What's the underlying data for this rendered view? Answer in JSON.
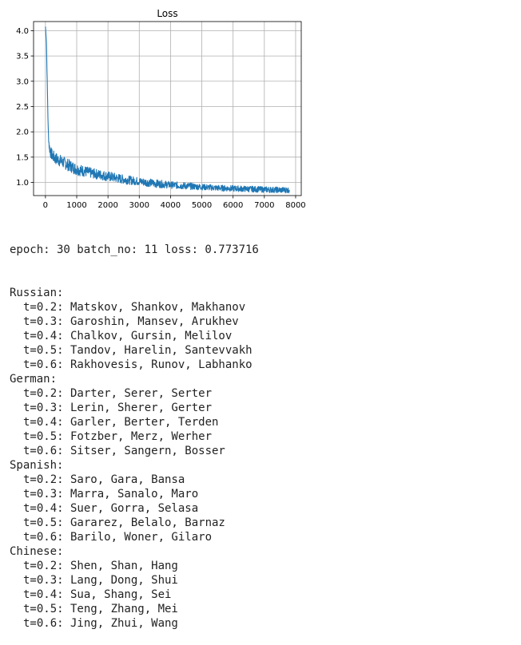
{
  "chart_data": {
    "type": "line",
    "title": "Loss",
    "xlabel": "",
    "ylabel": "",
    "xlim": [
      -380,
      8180
    ],
    "ylim": [
      0.74,
      4.18
    ],
    "xticks": [
      "0",
      "1000",
      "2000",
      "3000",
      "4000",
      "5000",
      "6000",
      "7000",
      "8000"
    ],
    "yticks": [
      "1.0",
      "1.5",
      "2.0",
      "2.5",
      "3.0",
      "3.5",
      "4.0"
    ],
    "grid": true,
    "color": "#1f77b4",
    "series": [
      {
        "x": [
          0,
          30,
          60,
          90,
          120,
          150,
          200,
          300,
          500,
          800,
          1000,
          1500,
          2000,
          2500,
          3000,
          3500,
          4000,
          4500,
          5000,
          5500,
          6000,
          6500,
          7000,
          7500,
          7800
        ],
        "y": [
          4.08,
          3.82,
          2.9,
          2.0,
          1.72,
          1.62,
          1.55,
          1.48,
          1.42,
          1.32,
          1.26,
          1.18,
          1.12,
          1.06,
          1.02,
          0.98,
          0.95,
          0.93,
          0.91,
          0.89,
          0.88,
          0.87,
          0.86,
          0.85,
          0.85
        ],
        "noise": [
          0.02,
          0.04,
          0.06,
          0.08,
          0.1,
          0.11,
          0.12,
          0.12,
          0.12,
          0.12,
          0.12,
          0.1,
          0.1,
          0.09,
          0.08,
          0.08,
          0.07,
          0.07,
          0.06,
          0.06,
          0.06,
          0.06,
          0.06,
          0.06,
          0.06
        ]
      }
    ]
  },
  "console": {
    "status": "epoch: 30 batch_no: 11 loss: 0.773716",
    "groups": [
      {
        "language": "Russian:",
        "lines": [
          "t=0.2: Matskov, Shankov, Makhanov",
          "t=0.3: Garoshin, Mansev, Arukhev",
          "t=0.4: Chalkov, Gursin, Melilov",
          "t=0.5: Tandov, Harelin, Santevvakh",
          "t=0.6: Rakhovesis, Runov, Labhanko"
        ]
      },
      {
        "language": "German:",
        "lines": [
          "t=0.2: Darter, Serer, Serter",
          "t=0.3: Lerin, Sherer, Gerter",
          "t=0.4: Garler, Berter, Terden",
          "t=0.5: Fotzber, Merz, Werher",
          "t=0.6: Sitser, Sangern, Bosser"
        ]
      },
      {
        "language": "Spanish:",
        "lines": [
          "t=0.2: Saro, Gara, Bansa",
          "t=0.3: Marra, Sanalo, Maro",
          "t=0.4: Suer, Gorra, Selasa",
          "t=0.5: Gararez, Belalo, Barnaz",
          "t=0.6: Barilo, Woner, Gilaro"
        ]
      },
      {
        "language": "Chinese:",
        "lines": [
          "t=0.2: Shen, Shan, Hang",
          "t=0.3: Lang, Dong, Shui",
          "t=0.4: Sua, Shang, Sei",
          "t=0.5: Teng, Zhang, Mei",
          "t=0.6: Jing, Zhui, Wang"
        ]
      }
    ]
  }
}
